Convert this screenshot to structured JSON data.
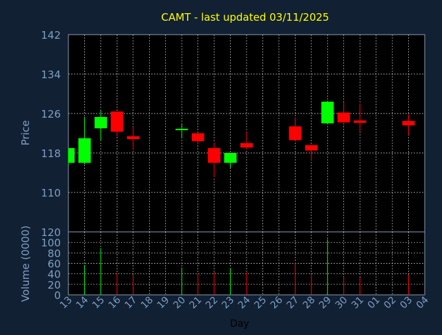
{
  "title": "CAMT - last updated 03/11/2025",
  "colors": {
    "background": "#112033",
    "plot_background": "#000000",
    "title": "#ffff00",
    "axis_text": "#7f9fc4",
    "up": "#00ff00",
    "down": "#ff0000",
    "grid": "#c8c8c8"
  },
  "chart_data": [
    {
      "type": "candlestick",
      "ylabel": "Price",
      "ylim": [
        102,
        142
      ],
      "yticks": [
        110,
        118,
        126,
        134,
        142
      ],
      "grid": true,
      "candles": [
        {
          "x": "13",
          "open": 116.0,
          "high": 119.0,
          "low": 115.5,
          "close": 119.0
        },
        {
          "x": "14",
          "open": 116.0,
          "high": 125.3,
          "low": 115.7,
          "close": 121.0
        },
        {
          "x": "15",
          "open": 123.0,
          "high": 126.6,
          "low": 120.5,
          "close": 125.3
        },
        {
          "x": "16",
          "open": 126.4,
          "high": 126.4,
          "low": 121.3,
          "close": 122.3
        },
        {
          "x": "17",
          "open": 121.4,
          "high": 123.3,
          "low": 118.6,
          "close": 120.8
        },
        {
          "x": "20",
          "open": 122.8,
          "high": 123.8,
          "low": 121.0,
          "close": 122.9
        },
        {
          "x": "21",
          "open": 122.0,
          "high": 122.0,
          "low": 119.7,
          "close": 120.4
        },
        {
          "x": "22",
          "open": 119.0,
          "high": 120.1,
          "low": 113.1,
          "close": 116.0
        },
        {
          "x": "23",
          "open": 116.0,
          "high": 118.0,
          "low": 115.0,
          "close": 118.0
        },
        {
          "x": "24",
          "open": 120.0,
          "high": 122.2,
          "low": 118.7,
          "close": 119.1
        },
        {
          "x": "27",
          "open": 123.4,
          "high": 125.2,
          "low": 120.5,
          "close": 120.6
        },
        {
          "x": "28",
          "open": 119.6,
          "high": 119.6,
          "low": 116.4,
          "close": 118.5
        },
        {
          "x": "29",
          "open": 124.0,
          "high": 128.6,
          "low": 124.0,
          "close": 128.4
        },
        {
          "x": "30",
          "open": 126.2,
          "high": 128.2,
          "low": 123.6,
          "close": 124.2
        },
        {
          "x": "31",
          "open": 124.6,
          "high": 128.0,
          "low": 122.4,
          "close": 124.1
        },
        {
          "x": "03",
          "open": 124.5,
          "high": 125.8,
          "low": 121.6,
          "close": 123.6
        }
      ]
    },
    {
      "type": "bar",
      "ylabel": "Volume (0000)",
      "ylim": [
        0,
        120
      ],
      "yticks": [
        0,
        20,
        40,
        60,
        80,
        100,
        120
      ],
      "grid": true,
      "xlabel": "Day",
      "categories": [
        "13",
        "14",
        "15",
        "16",
        "17",
        "18",
        "19",
        "20",
        "21",
        "22",
        "23",
        "24",
        "25",
        "26",
        "27",
        "28",
        "29",
        "30",
        "31",
        "01",
        "02",
        "03",
        "04"
      ],
      "bars": [
        {
          "x": "13",
          "value": 2,
          "dir": "up"
        },
        {
          "x": "14",
          "value": 57,
          "dir": "up"
        },
        {
          "x": "15",
          "value": 89,
          "dir": "up"
        },
        {
          "x": "16",
          "value": 42,
          "dir": "down"
        },
        {
          "x": "17",
          "value": 38,
          "dir": "down"
        },
        {
          "x": "20",
          "value": 52,
          "dir": "up"
        },
        {
          "x": "21",
          "value": 41,
          "dir": "down"
        },
        {
          "x": "22",
          "value": 44,
          "dir": "down"
        },
        {
          "x": "23",
          "value": 51,
          "dir": "up"
        },
        {
          "x": "24",
          "value": 43,
          "dir": "down"
        },
        {
          "x": "27",
          "value": 62,
          "dir": "down"
        },
        {
          "x": "28",
          "value": 37,
          "dir": "down"
        },
        {
          "x": "29",
          "value": 106,
          "dir": "up"
        },
        {
          "x": "30",
          "value": 34,
          "dir": "down"
        },
        {
          "x": "31",
          "value": 33,
          "dir": "down"
        },
        {
          "x": "03",
          "value": 39,
          "dir": "down"
        }
      ]
    }
  ]
}
